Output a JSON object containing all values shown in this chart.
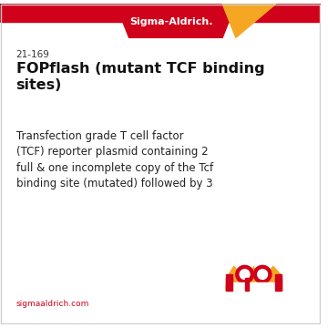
{
  "background_color": "#ffffff",
  "border_color": "#cccccc",
  "header_red": "#d0021b",
  "header_yellow": "#f5a623",
  "sigma_text": "Sigma-Aldrich.",
  "sigma_text_color": "#ffffff",
  "sigma_fontsize": 8,
  "catalog_number": "21-169",
  "catalog_fontsize": 7.5,
  "catalog_color": "#333333",
  "title": "FOPflash (mutant TCF binding\nsites)",
  "title_fontsize": 11.5,
  "title_color": "#111111",
  "body_text": "Transfection grade T cell factor\n(TCF) reporter plasmid containing 2\nfull & one incomplete copy of the Tcf\nbinding site (mutated) followed by 3",
  "body_fontsize": 8.5,
  "body_color": "#222222",
  "footer_text": "sigmaaldrich.com",
  "footer_color": "#d0021b",
  "footer_fontsize": 6.5,
  "logo_color_red": "#d0021b",
  "logo_color_yellow": "#f5a623"
}
